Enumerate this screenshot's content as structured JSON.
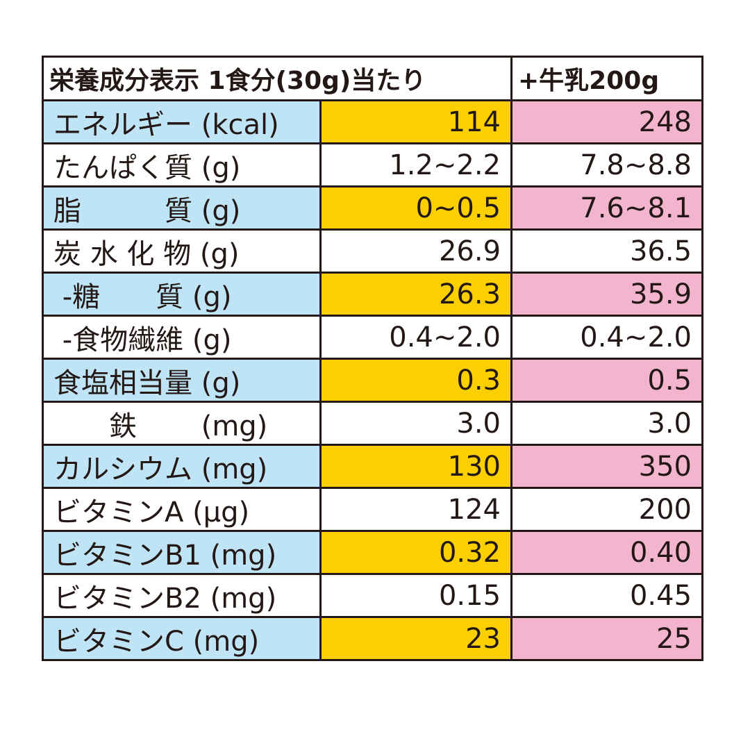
{
  "table": {
    "header": [
      "栄養成分表示 1食分(30g)当たり",
      "+牛乳200g"
    ],
    "rows": [
      [
        "エネルギー (kcal)",
        "114",
        "248"
      ],
      [
        "たんぱく質 (g)",
        "1.2~2.2",
        "7.8~8.8"
      ],
      [
        "脂　　　質 (g)",
        "0~0.5",
        "7.6~8.1"
      ],
      [
        "炭 水 化 物 (g)",
        "26.9",
        "36.5"
      ],
      [
        " -糖　　質 (g)",
        "26.3",
        "35.9"
      ],
      [
        " -食物繊維 (g)",
        "0.4~2.0",
        "0.4~2.0"
      ],
      [
        "食塩相当量 (g)",
        "0.3",
        "0.5"
      ],
      [
        "　　鉄　　 (mg)",
        "3.0",
        "3.0"
      ],
      [
        "カルシウム (mg)",
        "130",
        "350"
      ],
      [
        "ビタミンA (μg)",
        "124",
        "200"
      ],
      [
        "ビタミンB1 (mg)",
        "0.32",
        "0.40"
      ],
      [
        "ビタミンB2 (mg)",
        "0.15",
        "0.45"
      ],
      [
        "ビタミンC (mg)",
        "23",
        "25"
      ]
    ]
  }
}
